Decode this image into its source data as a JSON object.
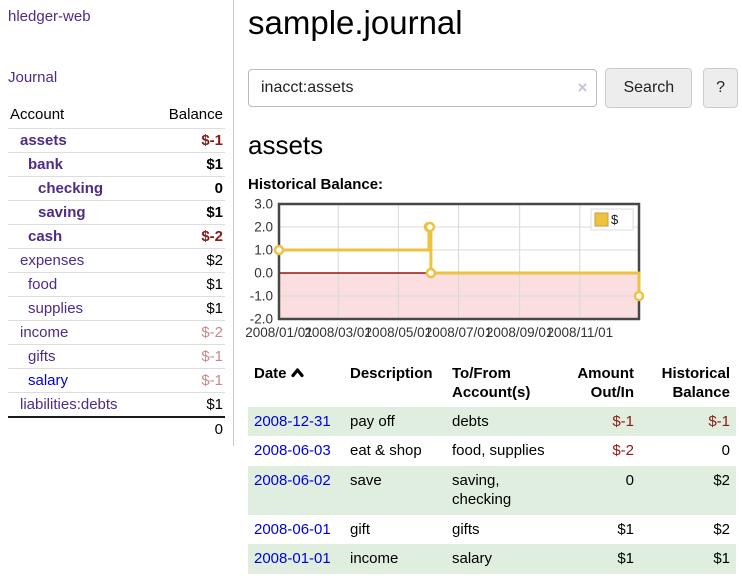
{
  "colors": {
    "link_purple": "#4f2b87",
    "link_blue": "#0000dd",
    "negative_strong": "#8b1717",
    "negative_soft": "#c98987",
    "row_stripe_green": "#dfeede",
    "sidebar_divider": "#cccccc"
  },
  "sidebar": {
    "brand": "hledger-web",
    "nav": {
      "journal": "Journal"
    },
    "accounts_table": {
      "account_header": "Account",
      "balance_header": "Balance",
      "rows": [
        {
          "name": "assets",
          "depth": 1,
          "bold": true,
          "link": "purple",
          "balance": "$-1",
          "neg": "strong"
        },
        {
          "name": "bank",
          "depth": 2,
          "bold": true,
          "link": "purple",
          "balance": "$1",
          "neg": "none"
        },
        {
          "name": "checking",
          "depth": 3,
          "bold": true,
          "link": "purple",
          "balance": "0",
          "neg": "none"
        },
        {
          "name": "saving",
          "depth": 3,
          "bold": true,
          "link": "purple",
          "balance": "$1",
          "neg": "none"
        },
        {
          "name": "cash",
          "depth": 2,
          "bold": true,
          "link": "purple",
          "balance": "$-2",
          "neg": "strong"
        },
        {
          "name": "expenses",
          "depth": 1,
          "bold": false,
          "link": "purple",
          "balance": "$2",
          "neg": "none"
        },
        {
          "name": "food",
          "depth": 2,
          "bold": false,
          "link": "purple",
          "balance": "$1",
          "neg": "none"
        },
        {
          "name": "supplies",
          "depth": 2,
          "bold": false,
          "link": "purple",
          "balance": "$1",
          "neg": "none"
        },
        {
          "name": "income",
          "depth": 1,
          "bold": false,
          "link": "purple",
          "balance": "$-2",
          "neg": "soft"
        },
        {
          "name": "gifts",
          "depth": 2,
          "bold": false,
          "link": "purple",
          "balance": "$-1",
          "neg": "soft"
        },
        {
          "name": "salary",
          "depth": 2,
          "bold": false,
          "link": "blue",
          "balance": "$-1",
          "neg": "soft"
        },
        {
          "name": "liabilities:debts",
          "depth": 1,
          "bold": false,
          "link": "purple",
          "balance": "$1",
          "neg": "none"
        }
      ],
      "total": "0"
    }
  },
  "main": {
    "title": "sample.journal",
    "search": {
      "value": "inacct:assets",
      "clear_icon": "×",
      "search_button": "Search",
      "help_button": "?"
    },
    "account_heading": "assets",
    "chart_heading": "Historical Balance:"
  },
  "chart_data": {
    "type": "line",
    "style": "step-after",
    "title": "Historical Balance",
    "x_type": "date",
    "x_range": [
      "2008-01-01",
      "2008-12-31"
    ],
    "x_total_days": 365,
    "ylim": [
      -2,
      3
    ],
    "grid": true,
    "legend_position": "top-right",
    "grid_color": "#d8d8d8",
    "border_color": "#474747",
    "zero_line_color": "#9e1111",
    "negative_band": {
      "from": 0,
      "to": -2,
      "color": "#fbdfe0"
    },
    "marker": {
      "fill": "#ffffff",
      "radius": 4
    },
    "y_ticks": [
      {
        "label": "3.0",
        "value": 3
      },
      {
        "label": "2.0",
        "value": 2
      },
      {
        "label": "1.0",
        "value": 1
      },
      {
        "label": "0.0",
        "value": 0
      },
      {
        "label": "-1.0",
        "value": -1
      },
      {
        "label": "-2.0",
        "value": -2
      }
    ],
    "x_ticks": [
      {
        "label": "2008/01/01",
        "day": 0
      },
      {
        "label": "2008/03/01",
        "day": 60
      },
      {
        "label": "2008/05/01",
        "day": 121
      },
      {
        "label": "2008/07/01",
        "day": 182
      },
      {
        "label": "2008/09/01",
        "day": 244
      },
      {
        "label": "2008/11/01",
        "day": 305
      }
    ],
    "series": [
      {
        "name": "$",
        "color": "#edc240",
        "points": [
          {
            "date": "2008-01-01",
            "day": 0,
            "value": 1
          },
          {
            "date": "2008-06-01",
            "day": 152,
            "value": 2
          },
          {
            "date": "2008-06-02",
            "day": 153,
            "value": 2
          },
          {
            "date": "2008-06-03",
            "day": 154,
            "value": 0
          },
          {
            "date": "2008-12-31",
            "day": 365,
            "value": -1
          }
        ]
      }
    ]
  },
  "register": {
    "headers": [
      {
        "label": "Date",
        "sort": "asc",
        "align": "left"
      },
      {
        "label": "Description",
        "align": "left"
      },
      {
        "label": "To/From Account(s)",
        "align": "left"
      },
      {
        "label": "Amount Out/In",
        "align": "right"
      },
      {
        "label": "Historical Balance",
        "align": "right"
      }
    ],
    "rows": [
      {
        "date": "2008-12-31",
        "description": "pay off",
        "accounts": "debts",
        "amount": "$-1",
        "amount_neg": true,
        "balance": "$-1",
        "balance_neg": true,
        "stripe": true
      },
      {
        "date": "2008-06-03",
        "description": "eat & shop",
        "accounts": "food, supplies",
        "amount": "$-2",
        "amount_neg": true,
        "balance": "0",
        "balance_neg": false,
        "stripe": false
      },
      {
        "date": "2008-06-02",
        "description": "save",
        "accounts": "saving, checking",
        "amount": "0",
        "amount_neg": false,
        "balance": "$2",
        "balance_neg": false,
        "stripe": true
      },
      {
        "date": "2008-06-01",
        "description": "gift",
        "accounts": "gifts",
        "amount": "$1",
        "amount_neg": false,
        "balance": "$2",
        "balance_neg": false,
        "stripe": false
      },
      {
        "date": "2008-01-01",
        "description": "income",
        "accounts": "salary",
        "amount": "$1",
        "amount_neg": false,
        "balance": "$1",
        "balance_neg": false,
        "stripe": true
      }
    ]
  }
}
